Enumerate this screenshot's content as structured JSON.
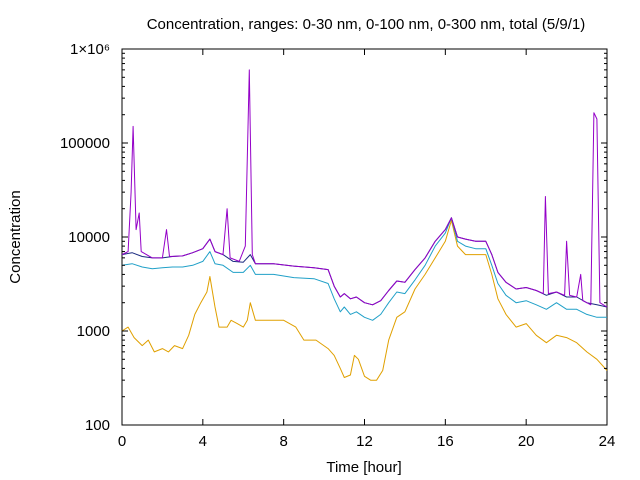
{
  "chart_data": {
    "type": "line",
    "title": "Concentration, ranges: 0-30 nm, 0-100 nm, 0-300 nm, total (5/9/1)",
    "xlabel": "Time [hour]",
    "ylabel": "Concentration",
    "xlim": [
      0,
      24
    ],
    "ylim": [
      100,
      1000000
    ],
    "yscale": "log",
    "grid": false,
    "legend": "none",
    "x_ticks": [
      {
        "value": 0,
        "label": "0"
      },
      {
        "value": 4,
        "label": "4"
      },
      {
        "value": 8,
        "label": "8"
      },
      {
        "value": 12,
        "label": "12"
      },
      {
        "value": 16,
        "label": "16"
      },
      {
        "value": 20,
        "label": "20"
      },
      {
        "value": 24,
        "label": "24"
      }
    ],
    "y_ticks": [
      {
        "value": 100,
        "label": "100"
      },
      {
        "value": 1000,
        "label": "1000"
      },
      {
        "value": 10000,
        "label": "10000"
      },
      {
        "value": 100000,
        "label": "100000"
      },
      {
        "value": 1000000,
        "label": "1×10⁶"
      }
    ],
    "series": [
      {
        "color": "#e0a000",
        "points": [
          [
            0,
            1000
          ],
          [
            0.3,
            1100
          ],
          [
            0.6,
            850
          ],
          [
            1,
            700
          ],
          [
            1.3,
            800
          ],
          [
            1.6,
            600
          ],
          [
            2,
            650
          ],
          [
            2.3,
            600
          ],
          [
            2.6,
            700
          ],
          [
            3,
            650
          ],
          [
            3.3,
            900
          ],
          [
            3.6,
            1500
          ],
          [
            3.9,
            2000
          ],
          [
            4.2,
            2600
          ],
          [
            4.35,
            3800
          ],
          [
            4.6,
            1800
          ],
          [
            4.8,
            1100
          ],
          [
            5.2,
            1100
          ],
          [
            5.4,
            1300
          ],
          [
            5.7,
            1200
          ],
          [
            6,
            1100
          ],
          [
            6.2,
            1300
          ],
          [
            6.35,
            2000
          ],
          [
            6.6,
            1300
          ],
          [
            7.2,
            1300
          ],
          [
            8,
            1300
          ],
          [
            8.6,
            1100
          ],
          [
            9,
            800
          ],
          [
            9.6,
            800
          ],
          [
            10.2,
            650
          ],
          [
            10.5,
            550
          ],
          [
            10.8,
            400
          ],
          [
            11,
            320
          ],
          [
            11.3,
            340
          ],
          [
            11.5,
            550
          ],
          [
            11.7,
            500
          ],
          [
            12,
            330
          ],
          [
            12.3,
            300
          ],
          [
            12.6,
            300
          ],
          [
            12.9,
            380
          ],
          [
            13.2,
            800
          ],
          [
            13.6,
            1400
          ],
          [
            14,
            1600
          ],
          [
            14.5,
            2800
          ],
          [
            15,
            4000
          ],
          [
            15.5,
            6000
          ],
          [
            16,
            9000
          ],
          [
            16.3,
            15000
          ],
          [
            16.6,
            8000
          ],
          [
            17,
            6500
          ],
          [
            17.5,
            6500
          ],
          [
            18,
            6500
          ],
          [
            18.3,
            4000
          ],
          [
            18.6,
            2200
          ],
          [
            19,
            1500
          ],
          [
            19.5,
            1100
          ],
          [
            20,
            1200
          ],
          [
            20.5,
            900
          ],
          [
            21,
            750
          ],
          [
            21.5,
            900
          ],
          [
            22,
            850
          ],
          [
            22.5,
            750
          ],
          [
            23,
            600
          ],
          [
            23.5,
            500
          ],
          [
            24,
            380
          ]
        ]
      },
      {
        "color": "#20a0c8",
        "points": [
          [
            0,
            5000
          ],
          [
            0.5,
            5200
          ],
          [
            1,
            4800
          ],
          [
            1.5,
            4600
          ],
          [
            2,
            4700
          ],
          [
            2.5,
            4800
          ],
          [
            3,
            4800
          ],
          [
            3.5,
            5000
          ],
          [
            4,
            5500
          ],
          [
            4.35,
            7000
          ],
          [
            4.6,
            5200
          ],
          [
            5,
            5000
          ],
          [
            5.5,
            4200
          ],
          [
            6,
            4200
          ],
          [
            6.35,
            5000
          ],
          [
            6.6,
            4000
          ],
          [
            7.5,
            4000
          ],
          [
            8.5,
            3700
          ],
          [
            9.5,
            3600
          ],
          [
            10.2,
            3200
          ],
          [
            10.5,
            2200
          ],
          [
            10.8,
            1600
          ],
          [
            11,
            1800
          ],
          [
            11.3,
            1500
          ],
          [
            11.6,
            1600
          ],
          [
            12,
            1400
          ],
          [
            12.4,
            1300
          ],
          [
            12.8,
            1500
          ],
          [
            13.2,
            2000
          ],
          [
            13.6,
            2600
          ],
          [
            14,
            2500
          ],
          [
            14.5,
            3500
          ],
          [
            15,
            5000
          ],
          [
            15.5,
            8000
          ],
          [
            16,
            11000
          ],
          [
            16.3,
            16000
          ],
          [
            16.6,
            9000
          ],
          [
            17,
            8000
          ],
          [
            17.5,
            7500
          ],
          [
            18,
            7500
          ],
          [
            18.3,
            5000
          ],
          [
            18.6,
            3200
          ],
          [
            19,
            2400
          ],
          [
            19.5,
            2000
          ],
          [
            20,
            2100
          ],
          [
            20.5,
            1900
          ],
          [
            21,
            1700
          ],
          [
            21.5,
            2000
          ],
          [
            22,
            1700
          ],
          [
            22.5,
            1700
          ],
          [
            23,
            1500
          ],
          [
            23.5,
            1400
          ],
          [
            24,
            1400
          ]
        ]
      },
      {
        "color": "#1a2a80",
        "points": [
          [
            0,
            6500
          ],
          [
            0.5,
            6800
          ],
          [
            1,
            6200
          ],
          [
            1.5,
            6000
          ],
          [
            2,
            6000
          ],
          [
            2.5,
            6200
          ],
          [
            3,
            6300
          ],
          [
            3.5,
            6800
          ],
          [
            4,
            7500
          ],
          [
            4.35,
            9500
          ],
          [
            4.6,
            7000
          ],
          [
            5,
            6500
          ],
          [
            5.5,
            5500
          ],
          [
            6,
            5400
          ],
          [
            6.35,
            6500
          ],
          [
            6.6,
            5200
          ],
          [
            7.5,
            5200
          ],
          [
            8.5,
            4900
          ],
          [
            9.5,
            4700
          ],
          [
            10.2,
            4500
          ],
          [
            10.5,
            3000
          ],
          [
            10.8,
            2300
          ],
          [
            11,
            2500
          ],
          [
            11.3,
            2200
          ],
          [
            11.6,
            2300
          ],
          [
            12,
            2000
          ],
          [
            12.4,
            1900
          ],
          [
            12.8,
            2100
          ],
          [
            13.2,
            2700
          ],
          [
            13.6,
            3400
          ],
          [
            14,
            3300
          ],
          [
            14.5,
            4500
          ],
          [
            15,
            6000
          ],
          [
            15.5,
            9000
          ],
          [
            16,
            12000
          ],
          [
            16.3,
            16000
          ],
          [
            16.6,
            10000
          ],
          [
            17,
            9500
          ],
          [
            17.5,
            9000
          ],
          [
            18,
            9000
          ],
          [
            18.3,
            6500
          ],
          [
            18.6,
            4200
          ],
          [
            19,
            3300
          ],
          [
            19.5,
            2800
          ],
          [
            20,
            2900
          ],
          [
            20.5,
            2700
          ],
          [
            21,
            2400
          ],
          [
            21.5,
            2600
          ],
          [
            22,
            2300
          ],
          [
            22.5,
            2300
          ],
          [
            23,
            2000
          ],
          [
            23.5,
            1900
          ],
          [
            24,
            1800
          ]
        ]
      },
      {
        "color": "#9400c8",
        "points": [
          [
            0,
            6500
          ],
          [
            0.3,
            7000
          ],
          [
            0.45,
            30000
          ],
          [
            0.55,
            150000
          ],
          [
            0.7,
            12000
          ],
          [
            0.85,
            18000
          ],
          [
            0.95,
            7000
          ],
          [
            1.5,
            6000
          ],
          [
            2,
            6000
          ],
          [
            2.2,
            12000
          ],
          [
            2.35,
            6200
          ],
          [
            3,
            6300
          ],
          [
            3.5,
            6800
          ],
          [
            4,
            7500
          ],
          [
            4.35,
            9500
          ],
          [
            4.6,
            7000
          ],
          [
            5,
            6500
          ],
          [
            5.2,
            20000
          ],
          [
            5.35,
            6000
          ],
          [
            5.8,
            5500
          ],
          [
            6.1,
            8000
          ],
          [
            6.3,
            600000
          ],
          [
            6.45,
            6500
          ],
          [
            6.6,
            5200
          ],
          [
            7.5,
            5200
          ],
          [
            8.5,
            4900
          ],
          [
            9.5,
            4700
          ],
          [
            10.2,
            4500
          ],
          [
            10.5,
            3000
          ],
          [
            10.8,
            2300
          ],
          [
            11,
            2500
          ],
          [
            11.3,
            2200
          ],
          [
            11.6,
            2300
          ],
          [
            12,
            2000
          ],
          [
            12.4,
            1900
          ],
          [
            12.8,
            2100
          ],
          [
            13.2,
            2700
          ],
          [
            13.6,
            3400
          ],
          [
            14,
            3300
          ],
          [
            14.5,
            4500
          ],
          [
            15,
            6000
          ],
          [
            15.5,
            9000
          ],
          [
            16,
            12000
          ],
          [
            16.3,
            16000
          ],
          [
            16.6,
            10000
          ],
          [
            17,
            9500
          ],
          [
            17.5,
            9000
          ],
          [
            18,
            9000
          ],
          [
            18.3,
            6500
          ],
          [
            18.6,
            4200
          ],
          [
            19,
            3300
          ],
          [
            19.5,
            2800
          ],
          [
            20,
            2900
          ],
          [
            20.5,
            2700
          ],
          [
            20.85,
            2500
          ],
          [
            20.95,
            27000
          ],
          [
            21.1,
            2500
          ],
          [
            21.5,
            2600
          ],
          [
            21.9,
            2400
          ],
          [
            22,
            9000
          ],
          [
            22.15,
            2400
          ],
          [
            22.5,
            2300
          ],
          [
            22.7,
            4000
          ],
          [
            22.8,
            2100
          ],
          [
            23,
            2000
          ],
          [
            23.2,
            1900
          ],
          [
            23.35,
            210000
          ],
          [
            23.5,
            180000
          ],
          [
            23.65,
            2000
          ],
          [
            24,
            1800
          ]
        ]
      }
    ]
  }
}
